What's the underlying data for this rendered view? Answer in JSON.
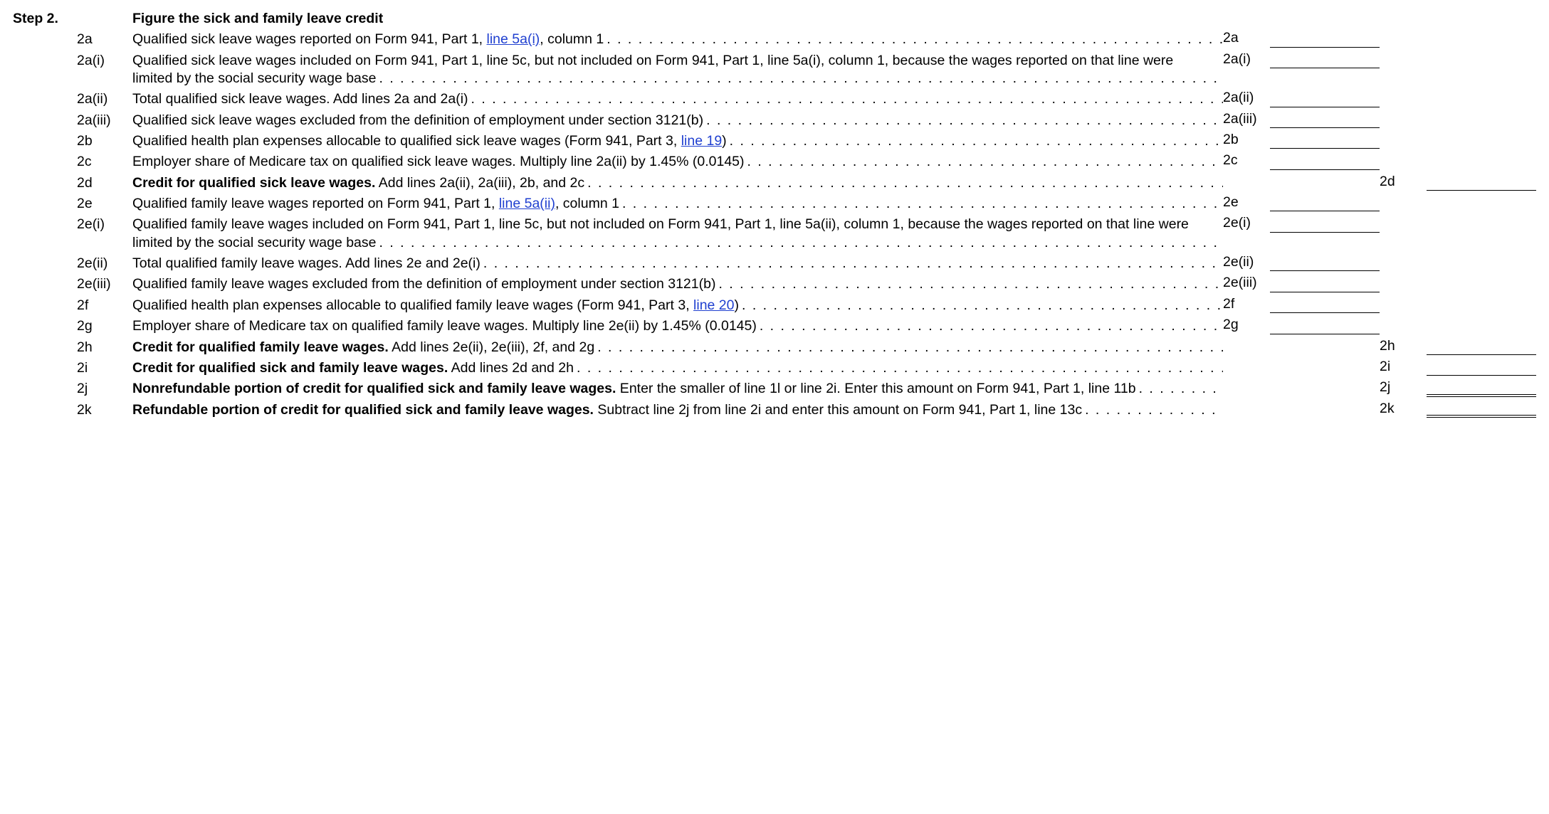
{
  "step_label": "Step 2.",
  "step_title": "Figure the sick and family leave credit",
  "lines": [
    {
      "id": "2a",
      "text_parts": [
        {
          "t": "Qualified sick leave wages reported on Form 941, Part 1, "
        },
        {
          "t": "line 5a(i)",
          "link": true
        },
        {
          "t": ", column 1"
        }
      ],
      "amount_col": 1,
      "amt_label": "2a",
      "rule": "single"
    },
    {
      "id": "2a(i)",
      "text_parts": [
        {
          "t": "Qualified sick leave wages included on Form 941, Part 1, line 5c, but not included on Form 941, Part 1, line 5a(i), column 1, because the wages reported on that line were limited by the social security wage base"
        }
      ],
      "amount_col": 1,
      "amt_label": "2a(i)",
      "rule": "single"
    },
    {
      "id": "2a(ii)",
      "text_parts": [
        {
          "t": "Total qualified sick leave wages. Add lines 2a and 2a(i)"
        }
      ],
      "amount_col": 1,
      "amt_label": "2a(ii)",
      "rule": "single"
    },
    {
      "id": "2a(iii)",
      "text_parts": [
        {
          "t": "Qualified sick leave wages excluded from the definition of employment under section 3121(b)"
        }
      ],
      "amount_col": 1,
      "amt_label": "2a(iii)",
      "rule": "single"
    },
    {
      "id": "2b",
      "text_parts": [
        {
          "t": "Qualified health plan expenses allocable to qualified sick leave wages (Form 941, Part 3, "
        },
        {
          "t": "line 19",
          "link": true
        },
        {
          "t": ")"
        }
      ],
      "amount_col": 1,
      "amt_label": "2b",
      "rule": "single"
    },
    {
      "id": "2c",
      "text_parts": [
        {
          "t": "Employer share of Medicare tax on qualified sick leave wages. Multiply line 2a(ii) by 1.45% (0.0145)"
        }
      ],
      "amount_col": 1,
      "amt_label": "2c",
      "rule": "single"
    },
    {
      "id": "2d",
      "text_parts": [
        {
          "t": "Credit for qualified sick leave wages.",
          "bold": true
        },
        {
          "t": " Add lines 2a(ii), 2a(iii), 2b, and 2c"
        }
      ],
      "amount_col": 2,
      "amt_label": "2d",
      "rule": "single"
    },
    {
      "id": "2e",
      "text_parts": [
        {
          "t": "Qualified family leave wages reported on Form 941, Part 1, "
        },
        {
          "t": "line 5a(ii)",
          "link": true
        },
        {
          "t": ", column 1"
        }
      ],
      "amount_col": 1,
      "amt_label": "2e",
      "rule": "single"
    },
    {
      "id": "2e(i)",
      "text_parts": [
        {
          "t": "Qualified family leave wages included on Form 941, Part 1, line 5c, but not included on Form 941, Part 1, line 5a(ii), column 1, because the wages reported on that line were limited by the social security wage base"
        }
      ],
      "amount_col": 1,
      "amt_label": "2e(i)",
      "rule": "single"
    },
    {
      "id": "2e(ii)",
      "text_parts": [
        {
          "t": "Total qualified family leave wages. Add lines 2e and 2e(i)"
        }
      ],
      "amount_col": 1,
      "amt_label": "2e(ii)",
      "rule": "single"
    },
    {
      "id": "2e(iii)",
      "text_parts": [
        {
          "t": "Qualified family leave wages excluded from the definition of employment under section 3121(b)"
        }
      ],
      "amount_col": 1,
      "amt_label": "2e(iii)",
      "rule": "single"
    },
    {
      "id": "2f",
      "text_parts": [
        {
          "t": "Qualified health plan expenses allocable to qualified family leave wages (Form 941, Part 3, "
        },
        {
          "t": "line 20",
          "link": true
        },
        {
          "t": ")"
        }
      ],
      "amount_col": 1,
      "amt_label": "2f",
      "rule": "single"
    },
    {
      "id": "2g",
      "text_parts": [
        {
          "t": "Employer share of Medicare tax on qualified family leave wages. Multiply line 2e(ii) by 1.45% (0.0145)"
        }
      ],
      "amount_col": 1,
      "amt_label": "2g",
      "rule": "single"
    },
    {
      "id": "2h",
      "text_parts": [
        {
          "t": "Credit for qualified family leave wages.",
          "bold": true
        },
        {
          "t": " Add lines 2e(ii), 2e(iii), 2f, and 2g"
        }
      ],
      "amount_col": 2,
      "amt_label": "2h",
      "rule": "single"
    },
    {
      "id": "2i",
      "text_parts": [
        {
          "t": "Credit for qualified sick and family leave wages.",
          "bold": true
        },
        {
          "t": " Add lines 2d and 2h"
        }
      ],
      "amount_col": 2,
      "amt_label": "2i",
      "rule": "single"
    },
    {
      "id": "2j",
      "text_parts": [
        {
          "t": "Nonrefundable portion of credit for qualified sick and family leave wages.",
          "bold": true
        },
        {
          "t": " Enter the smaller of line 1l or line 2i. Enter this amount on Form 941, Part 1, line 11b"
        }
      ],
      "amount_col": 2,
      "amt_label": "2j",
      "rule": "double"
    },
    {
      "id": "2k",
      "text_parts": [
        {
          "t": "Refundable portion of credit for qualified sick and family leave wages.",
          "bold": true
        },
        {
          "t": " Subtract line 2j from line 2i and enter this amount on Form 941, Part 1, line 13c"
        }
      ],
      "amount_col": 2,
      "amt_label": "2k",
      "rule": "double"
    }
  ]
}
